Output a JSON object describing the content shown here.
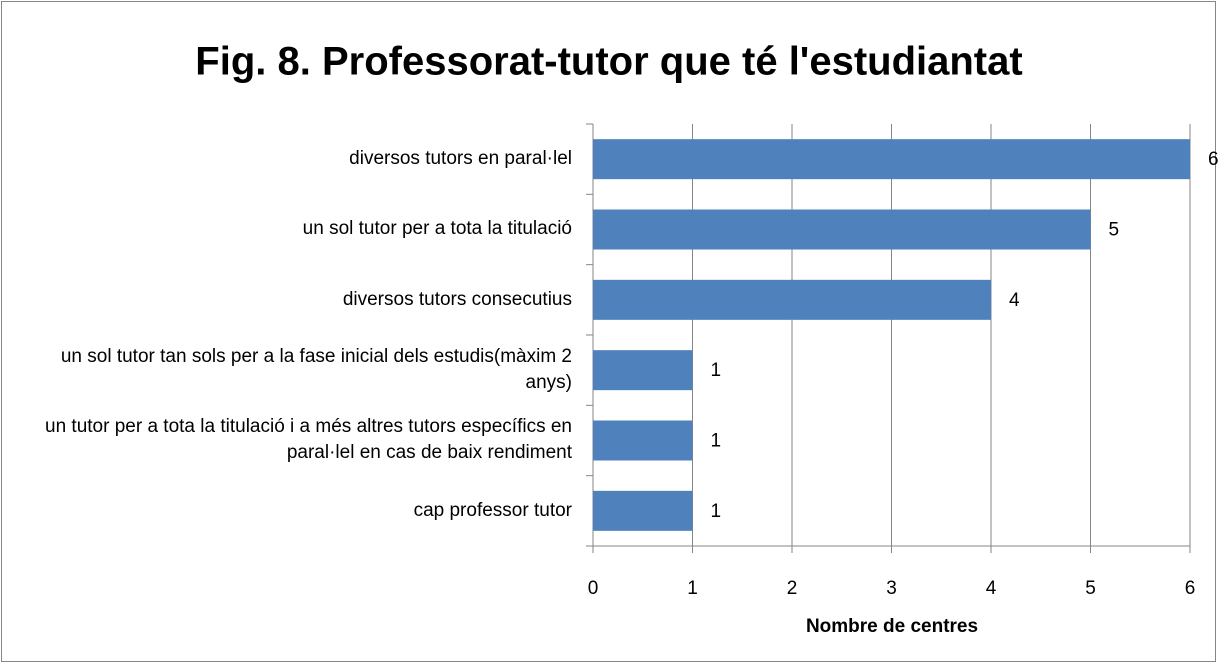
{
  "chart_data": {
    "type": "barh",
    "title": "Fig. 8. Professorat-tutor que té l'estudiantat",
    "categories": [
      "diversos tutors en paral·lel",
      "un sol tutor per a tota la titulació",
      "diversos tutors consecutius",
      "un sol tutor tan sols per a la fase inicial dels estudis(màxim 2 anys)",
      "un tutor per a tota la titulació i a més altres tutors específics en paral·lel en cas de baix rendiment",
      "cap professor tutor"
    ],
    "values": [
      6,
      5,
      4,
      1,
      1,
      1
    ],
    "color": "#4f81bd",
    "xlabel": "Nombre de centres",
    "xlim": [
      0,
      6
    ],
    "xticks": [
      0,
      1,
      2,
      3,
      4,
      5,
      6
    ],
    "grid": true
  }
}
